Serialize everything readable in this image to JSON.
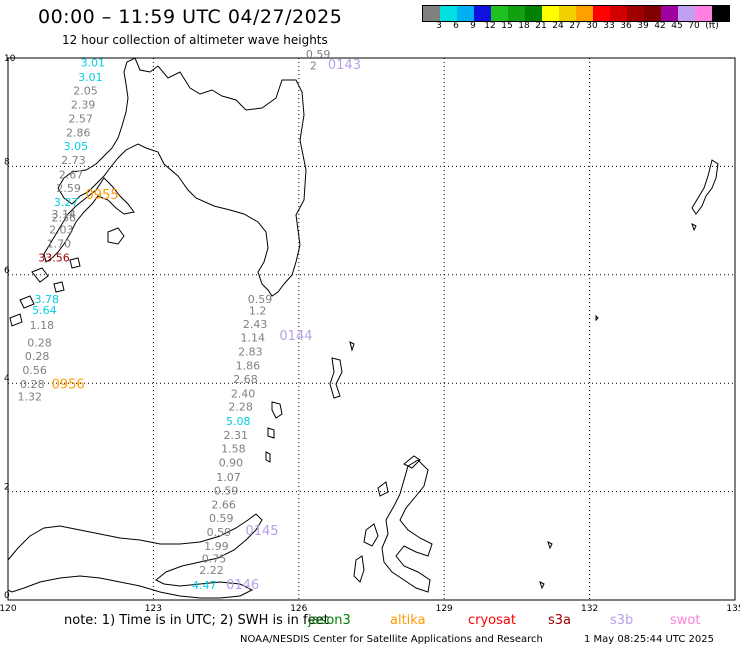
{
  "title": "00:00 – 11:59 UTC 04/27/2025",
  "subtitle": "12 hour collection of altimeter wave heights",
  "scale": {
    "colors": [
      "#808080",
      "#00e0e0",
      "#00b0f0",
      "#1010e0",
      "#20c020",
      "#10a010",
      "#008000",
      "#ffff00",
      "#f0d000",
      "#ffa000",
      "#ff0000",
      "#d00000",
      "#a00000",
      "#800000",
      "#a000a0",
      "#c0a0f0",
      "#ff80e0",
      "#000000"
    ],
    "labels": [
      "3",
      "6",
      "9",
      "12",
      "15",
      "18",
      "21",
      "24",
      "27",
      "30",
      "33",
      "36",
      "39",
      "42",
      "45",
      "70"
    ],
    "unit": "(ft)"
  },
  "axes": {
    "x_ticks": [
      "120",
      "123",
      "126",
      "129",
      "132",
      "135"
    ],
    "y_ticks": [
      "10",
      "8",
      "6",
      "4",
      "2",
      "0"
    ],
    "x_range": [
      120,
      135
    ],
    "y_range": [
      0,
      10
    ]
  },
  "tracks": [
    {
      "id": "0143",
      "label": "0143",
      "color": "#b8a0e8",
      "lon": 126.6,
      "lat": 9.8
    },
    {
      "id": "0955",
      "label": "0955",
      "color": "#ff9900",
      "lon": 121.6,
      "lat": 7.4
    },
    {
      "id": "0144",
      "label": "0144",
      "color": "#b8a0e8",
      "lon": 125.6,
      "lat": 4.8
    },
    {
      "id": "0956",
      "label": "0956",
      "color": "#ff9900",
      "lon": 120.9,
      "lat": 3.9
    },
    {
      "id": "0145",
      "label": "0145",
      "color": "#b8a0e8",
      "lon": 124.9,
      "lat": 1.2
    },
    {
      "id": "0146",
      "label": "0146",
      "color": "#b8a0e8",
      "lon": 124.5,
      "lat": 0.2
    }
  ],
  "wave_readings": [
    {
      "t": "3.01",
      "lon": 121.75,
      "lat": 9.84,
      "c": "#00d0e0"
    },
    {
      "t": "3.01",
      "lon": 121.7,
      "lat": 9.58,
      "c": "#00d0e0"
    },
    {
      "t": "2.05",
      "lon": 121.6,
      "lat": 9.33,
      "c": "#808080"
    },
    {
      "t": "2.39",
      "lon": 121.55,
      "lat": 9.07,
      "c": "#808080"
    },
    {
      "t": "2.57",
      "lon": 121.5,
      "lat": 8.81,
      "c": "#808080"
    },
    {
      "t": "2.86",
      "lon": 121.45,
      "lat": 8.55,
      "c": "#808080"
    },
    {
      "t": "3.05",
      "lon": 121.4,
      "lat": 8.3,
      "c": "#00d0e0"
    },
    {
      "t": "2.73",
      "lon": 121.35,
      "lat": 8.04,
      "c": "#808080"
    },
    {
      "t": "2.67",
      "lon": 121.3,
      "lat": 7.78,
      "c": "#808080"
    },
    {
      "t": "2.59",
      "lon": 121.25,
      "lat": 7.53,
      "c": "#808080"
    },
    {
      "t": "3.27",
      "lon": 121.2,
      "lat": 7.27,
      "c": "#00d0e0"
    },
    {
      "t": "3.14",
      "lon": 121.15,
      "lat": 7.05,
      "c": "#808080"
    },
    {
      "t": "2.36",
      "lon": 121.15,
      "lat": 6.98,
      "c": "#808080"
    },
    {
      "t": "2.03",
      "lon": 121.1,
      "lat": 6.76,
      "c": "#808080"
    },
    {
      "t": "1.70",
      "lon": 121.05,
      "lat": 6.5,
      "c": "#808080"
    },
    {
      "t": "33.56",
      "lon": 120.95,
      "lat": 6.25,
      "c": "#a00000"
    },
    {
      "t": "3.78",
      "lon": 120.8,
      "lat": 5.48,
      "c": "#00d0e0"
    },
    {
      "t": "5.64",
      "lon": 120.75,
      "lat": 5.28,
      "c": "#00d0e0"
    },
    {
      "t": "1.18",
      "lon": 120.7,
      "lat": 5.0,
      "c": "#808080"
    },
    {
      "t": "0.28",
      "lon": 120.65,
      "lat": 4.68,
      "c": "#808080"
    },
    {
      "t": "0.28",
      "lon": 120.6,
      "lat": 4.43,
      "c": "#808080"
    },
    {
      "t": "0.56",
      "lon": 120.55,
      "lat": 4.17,
      "c": "#808080"
    },
    {
      "t": "0.28",
      "lon": 120.5,
      "lat": 3.91,
      "c": "#808080"
    },
    {
      "t": "1.32",
      "lon": 120.45,
      "lat": 3.68,
      "c": "#808080"
    },
    {
      "t": "0.59",
      "lon": 126.4,
      "lat": 10.0,
      "c": "#808080"
    },
    {
      "t": "2",
      "lon": 126.3,
      "lat": 9.79,
      "c": "#808080"
    },
    {
      "t": "0.59",
      "lon": 125.2,
      "lat": 5.48,
      "c": "#808080"
    },
    {
      "t": "1.2",
      "lon": 125.15,
      "lat": 5.27,
      "c": "#808080"
    },
    {
      "t": "2.43",
      "lon": 125.1,
      "lat": 5.02,
      "c": "#808080"
    },
    {
      "t": "1.14",
      "lon": 125.05,
      "lat": 4.77,
      "c": "#808080"
    },
    {
      "t": "2.83",
      "lon": 125.0,
      "lat": 4.51,
      "c": "#808080"
    },
    {
      "t": "1.86",
      "lon": 124.95,
      "lat": 4.25,
      "c": "#808080"
    },
    {
      "t": "2.68",
      "lon": 124.9,
      "lat": 4.0,
      "c": "#808080"
    },
    {
      "t": "2.40",
      "lon": 124.85,
      "lat": 3.74,
      "c": "#808080"
    },
    {
      "t": "2.28",
      "lon": 124.8,
      "lat": 3.5,
      "c": "#808080"
    },
    {
      "t": "5.08",
      "lon": 124.75,
      "lat": 3.23,
      "c": "#00d0e0"
    },
    {
      "t": "2.31",
      "lon": 124.7,
      "lat": 2.97,
      "c": "#808080"
    },
    {
      "t": "1.58",
      "lon": 124.65,
      "lat": 2.72,
      "c": "#808080"
    },
    {
      "t": "0.90",
      "lon": 124.6,
      "lat": 2.46,
      "c": "#808080"
    },
    {
      "t": "1.07",
      "lon": 124.55,
      "lat": 2.2,
      "c": "#808080"
    },
    {
      "t": "0.59",
      "lon": 124.5,
      "lat": 1.95,
      "c": "#808080"
    },
    {
      "t": "2.66",
      "lon": 124.45,
      "lat": 1.69,
      "c": "#808080"
    },
    {
      "t": "0.59",
      "lon": 124.4,
      "lat": 1.44,
      "c": "#808080"
    },
    {
      "t": "0.59",
      "lon": 124.35,
      "lat": 1.18,
      "c": "#808080"
    },
    {
      "t": "1.99",
      "lon": 124.3,
      "lat": 0.92,
      "c": "#808080"
    },
    {
      "t": "0.75",
      "lon": 124.25,
      "lat": 0.69,
      "c": "#808080"
    },
    {
      "t": "2.22",
      "lon": 124.2,
      "lat": 0.48,
      "c": "#808080"
    },
    {
      "t": "4.47",
      "lon": 124.05,
      "lat": 0.2,
      "c": "#00d0e0"
    }
  ],
  "note": "note:  1) Time is in UTC; 2) SWH is in feet",
  "satellites": [
    {
      "name": "jason3",
      "color": "#008000"
    },
    {
      "name": "altika",
      "color": "#ff9900"
    },
    {
      "name": "cryosat",
      "color": "#ff0000"
    },
    {
      "name": "s3a",
      "color": "#a00000"
    },
    {
      "name": "s3b",
      "color": "#b8a0e8"
    },
    {
      "name": "swot",
      "color": "#ff80e0"
    }
  ],
  "credit": "NOAA/NESDIS Center for Satellite Applications and Research",
  "timestamp": "1 May 08:25:44 UTC 2025"
}
